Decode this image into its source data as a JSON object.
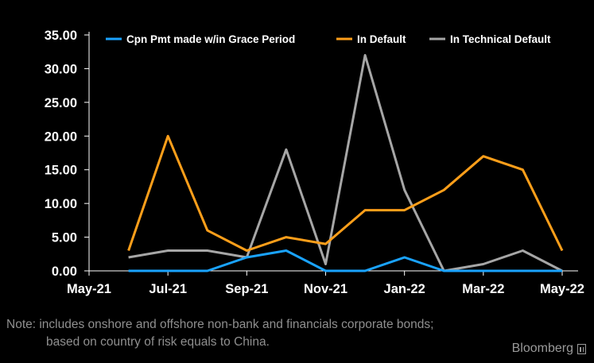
{
  "chart_data": {
    "type": "line",
    "x": [
      "2021-06",
      "2021-07",
      "2021-08",
      "2021-09",
      "2021-10",
      "2021-11",
      "2021-12",
      "2022-01",
      "2022-02",
      "2022-03",
      "2022-04",
      "2022-05"
    ],
    "x_ticks": [
      "2021-05",
      "2021-07",
      "2021-09",
      "2021-11",
      "2022-01",
      "2022-03",
      "2022-05"
    ],
    "x_tick_labels": [
      "May-21",
      "Jul-21",
      "Sep-21",
      "Nov-21",
      "Jan-22",
      "Mar-22",
      "May-22"
    ],
    "xlim": [
      "2021-05",
      "2022-05"
    ],
    "ylim": [
      0,
      35
    ],
    "y_ticks": [
      0,
      5,
      10,
      15,
      20,
      25,
      30,
      35
    ],
    "y_tick_labels": [
      "0.00",
      "5.00",
      "10.00",
      "15.00",
      "20.00",
      "25.00",
      "30.00",
      "35.00"
    ],
    "series": [
      {
        "name": "Cpn Pmt made w/in Grace Period",
        "color": "#1aa3ff",
        "values": [
          0,
          0,
          0,
          2,
          3,
          0,
          0,
          2,
          0,
          0,
          0,
          0
        ]
      },
      {
        "name": "In Default",
        "color": "#ff9f1a",
        "values": [
          3,
          20,
          6,
          3,
          5,
          4,
          9,
          9,
          12,
          17,
          15,
          3
        ]
      },
      {
        "name": "In Technical Default",
        "color": "#a6a6a6",
        "values": [
          2,
          3,
          3,
          2,
          18,
          1,
          32,
          12,
          0,
          1,
          3,
          0
        ]
      }
    ],
    "title": "",
    "xlabel": "",
    "ylabel": "",
    "grid": false,
    "legend_position": "top"
  },
  "note": {
    "line1": "Note: includes onshore and offshore non-bank and financials corporate bonds;",
    "line2": "based on country of risk equals to China."
  },
  "brand": "Bloomberg",
  "colors": {
    "background": "#000000",
    "axis": "#ffffff",
    "text": "#ffffff",
    "note_text": "#8f8f8f"
  }
}
